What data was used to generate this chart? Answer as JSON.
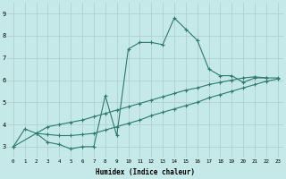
{
  "xlabel": "Humidex (Indice chaleur)",
  "bg_color": "#c5e8e8",
  "grid_color": "#aacccc",
  "line_color": "#2d7a6e",
  "xlim": [
    -0.5,
    23.5
  ],
  "ylim": [
    2.5,
    9.5
  ],
  "xticks": [
    0,
    1,
    2,
    3,
    4,
    5,
    6,
    7,
    8,
    9,
    10,
    11,
    12,
    13,
    14,
    15,
    16,
    17,
    18,
    19,
    20,
    21,
    22,
    23
  ],
  "yticks": [
    3,
    4,
    5,
    6,
    7,
    8,
    9
  ],
  "line1_x": [
    0,
    1,
    2,
    3,
    4,
    5,
    6,
    7,
    8,
    9,
    10,
    11,
    12,
    13,
    14,
    15,
    16,
    17,
    18,
    19,
    20,
    21,
    22
  ],
  "line1_y": [
    3.0,
    3.8,
    3.6,
    3.2,
    3.1,
    2.9,
    3.0,
    3.0,
    5.3,
    3.5,
    7.4,
    7.7,
    7.7,
    7.6,
    8.8,
    8.3,
    7.8,
    6.5,
    6.2,
    6.2,
    5.9,
    6.1,
    6.1
  ],
  "line2_x": [
    2,
    3,
    4,
    5,
    6,
    7,
    8,
    9,
    10,
    11,
    12,
    13,
    14,
    15,
    16,
    17,
    18,
    19,
    20,
    21,
    22,
    23
  ],
  "line2_y": [
    3.6,
    3.9,
    4.0,
    4.1,
    4.2,
    4.35,
    4.5,
    4.65,
    4.8,
    4.95,
    5.1,
    5.25,
    5.4,
    5.55,
    5.65,
    5.8,
    5.9,
    6.0,
    6.1,
    6.15,
    6.1,
    6.1
  ],
  "line3_x": [
    0,
    2,
    3,
    4,
    5,
    6,
    7,
    8,
    9,
    10,
    11,
    12,
    13,
    14,
    15,
    16,
    17,
    18,
    19,
    20,
    21,
    22,
    23
  ],
  "line3_y": [
    3.0,
    3.6,
    3.55,
    3.5,
    3.5,
    3.55,
    3.6,
    3.75,
    3.9,
    4.05,
    4.2,
    4.4,
    4.55,
    4.7,
    4.85,
    5.0,
    5.2,
    5.35,
    5.5,
    5.65,
    5.8,
    5.95,
    6.05
  ],
  "xlabel_fontsize": 5.5,
  "tick_fontsize_x": 4.2,
  "tick_fontsize_y": 5.0
}
